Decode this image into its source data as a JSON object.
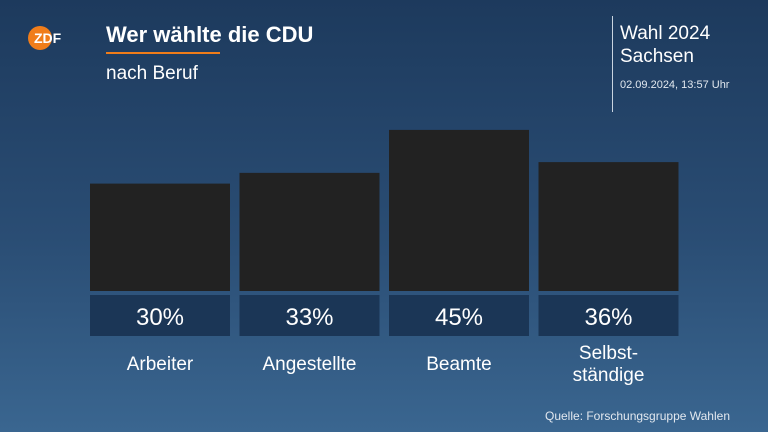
{
  "header": {
    "logo_text": "ZDF",
    "title": "Wer wählte die CDU",
    "subtitle": "nach Beruf",
    "election_line1": "Wahl 2024",
    "election_line2": "Sachsen",
    "timestamp": "02.09.2024, 13:57 Uhr"
  },
  "footer": {
    "source": "Quelle: Forschungsgruppe Wahlen"
  },
  "colors": {
    "bar": "#222222",
    "label_box": "#1b3656",
    "accent": "#f07d1a"
  },
  "chart_data": {
    "type": "bar",
    "title": "Wer wählte die CDU",
    "subtitle": "nach Beruf",
    "categories": [
      "Arbeiter",
      "Angestellte",
      "Beamte",
      "Selbst-\nständige"
    ],
    "values": [
      30,
      33,
      45,
      36
    ],
    "value_labels": [
      "30%",
      "33%",
      "45%",
      "36%"
    ],
    "unit": "%",
    "ylim": [
      0,
      50
    ],
    "grid": false,
    "legend": "none"
  }
}
